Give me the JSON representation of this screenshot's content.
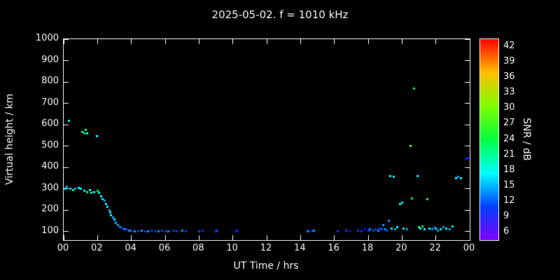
{
  "title": "2025-05-02. f = 1010 kHz",
  "chart_data": {
    "type": "scatter",
    "title": "2025-05-02. f = 1010 kHz",
    "xlabel": "UT Time / hrs",
    "ylabel": "Virtual height / km",
    "x_tick_labels": [
      "00",
      "02",
      "04",
      "06",
      "08",
      "10",
      "12",
      "14",
      "16",
      "18",
      "20",
      "22",
      "00"
    ],
    "x_tick_hours": [
      0,
      2,
      4,
      6,
      8,
      10,
      12,
      14,
      16,
      18,
      20,
      22,
      24
    ],
    "x_range_hours": [
      0,
      24
    ],
    "y_ticks": [
      100,
      200,
      300,
      400,
      500,
      600,
      700,
      800,
      900,
      1000
    ],
    "ylim": [
      60,
      1000
    ],
    "grid": false,
    "colorbar": {
      "label": "SNR / dB",
      "ticks": [
        42,
        39,
        36,
        33,
        30,
        27,
        24,
        21,
        18,
        15,
        12,
        9,
        6
      ],
      "range": [
        4.5,
        43.5
      ],
      "top_color": "#ff0000",
      "bottom_color": "#8800ff"
    },
    "points_format": "[ut_hour, virtual_height_km, snr_db]",
    "points": [
      [
        0.1,
        300,
        18
      ],
      [
        0.2,
        310,
        15
      ],
      [
        0.3,
        620,
        18
      ],
      [
        0.4,
        300,
        18
      ],
      [
        0.55,
        295,
        21
      ],
      [
        0.7,
        300,
        15
      ],
      [
        0.9,
        305,
        18
      ],
      [
        1.0,
        300,
        18
      ],
      [
        1.1,
        565,
        21
      ],
      [
        1.2,
        560,
        24
      ],
      [
        1.3,
        575,
        21
      ],
      [
        1.4,
        560,
        18
      ],
      [
        1.2,
        290,
        18
      ],
      [
        1.4,
        285,
        21
      ],
      [
        1.55,
        295,
        18
      ],
      [
        1.65,
        280,
        21
      ],
      [
        1.8,
        285,
        18
      ],
      [
        1.95,
        545,
        18
      ],
      [
        2.0,
        290,
        24
      ],
      [
        2.1,
        280,
        18
      ],
      [
        2.2,
        265,
        18
      ],
      [
        2.3,
        250,
        18
      ],
      [
        2.4,
        245,
        15
      ],
      [
        2.5,
        230,
        18
      ],
      [
        2.6,
        215,
        18
      ],
      [
        2.7,
        200,
        15
      ],
      [
        2.75,
        190,
        18
      ],
      [
        2.8,
        175,
        18
      ],
      [
        2.9,
        165,
        15
      ],
      [
        3.0,
        155,
        18
      ],
      [
        3.05,
        145,
        12
      ],
      [
        3.1,
        140,
        15
      ],
      [
        3.2,
        130,
        15
      ],
      [
        3.35,
        120,
        15
      ],
      [
        3.5,
        115,
        12
      ],
      [
        3.6,
        110,
        15
      ],
      [
        3.7,
        110,
        12
      ],
      [
        3.85,
        105,
        15
      ],
      [
        4.0,
        105,
        12
      ],
      [
        4.2,
        100,
        15
      ],
      [
        4.4,
        100,
        12
      ],
      [
        4.6,
        105,
        15
      ],
      [
        4.8,
        100,
        12
      ],
      [
        5.0,
        100,
        15
      ],
      [
        5.2,
        105,
        12
      ],
      [
        5.4,
        100,
        12
      ],
      [
        5.6,
        100,
        15
      ],
      [
        5.8,
        105,
        12
      ],
      [
        6.0,
        100,
        12
      ],
      [
        6.2,
        100,
        15
      ],
      [
        6.5,
        105,
        12
      ],
      [
        6.7,
        100,
        12
      ],
      [
        7.0,
        105,
        15
      ],
      [
        7.2,
        100,
        12
      ],
      [
        8.0,
        100,
        12
      ],
      [
        8.2,
        105,
        12
      ],
      [
        9.0,
        100,
        12
      ],
      [
        9.1,
        105,
        12
      ],
      [
        10.2,
        105,
        12
      ],
      [
        10.3,
        100,
        9
      ],
      [
        14.4,
        100,
        15
      ],
      [
        14.5,
        105,
        12
      ],
      [
        14.7,
        100,
        12
      ],
      [
        14.8,
        105,
        15
      ],
      [
        16.2,
        100,
        12
      ],
      [
        16.7,
        105,
        12
      ],
      [
        16.9,
        100,
        9
      ],
      [
        17.4,
        105,
        12
      ],
      [
        17.6,
        100,
        12
      ],
      [
        17.8,
        110,
        9
      ],
      [
        18.0,
        105,
        12
      ],
      [
        18.1,
        110,
        15
      ],
      [
        18.3,
        105,
        12
      ],
      [
        18.45,
        110,
        12
      ],
      [
        18.6,
        105,
        15
      ],
      [
        18.7,
        115,
        12
      ],
      [
        18.8,
        110,
        12
      ],
      [
        18.9,
        130,
        15
      ],
      [
        19.0,
        110,
        15
      ],
      [
        19.1,
        105,
        12
      ],
      [
        19.2,
        150,
        15
      ],
      [
        19.3,
        360,
        18
      ],
      [
        19.4,
        115,
        18
      ],
      [
        19.5,
        355,
        18
      ],
      [
        19.6,
        110,
        15
      ],
      [
        19.7,
        120,
        18
      ],
      [
        19.9,
        230,
        21
      ],
      [
        20.0,
        235,
        18
      ],
      [
        20.1,
        115,
        18
      ],
      [
        20.3,
        110,
        15
      ],
      [
        20.5,
        500,
        30
      ],
      [
        20.6,
        255,
        24
      ],
      [
        20.7,
        770,
        24
      ],
      [
        20.9,
        360,
        18
      ],
      [
        21.0,
        120,
        21
      ],
      [
        21.1,
        115,
        18
      ],
      [
        21.2,
        125,
        24
      ],
      [
        21.35,
        110,
        18
      ],
      [
        21.5,
        250,
        21
      ],
      [
        21.6,
        115,
        18
      ],
      [
        21.8,
        110,
        15
      ],
      [
        21.9,
        120,
        12
      ],
      [
        22.0,
        115,
        18
      ],
      [
        22.1,
        105,
        15
      ],
      [
        22.3,
        110,
        18
      ],
      [
        22.45,
        120,
        15
      ],
      [
        22.6,
        115,
        18
      ],
      [
        22.8,
        110,
        15
      ],
      [
        23.0,
        125,
        18
      ],
      [
        23.2,
        350,
        18
      ],
      [
        23.3,
        355,
        15
      ],
      [
        23.5,
        350,
        18
      ],
      [
        23.8,
        440,
        12
      ],
      [
        23.9,
        445,
        9
      ]
    ]
  }
}
